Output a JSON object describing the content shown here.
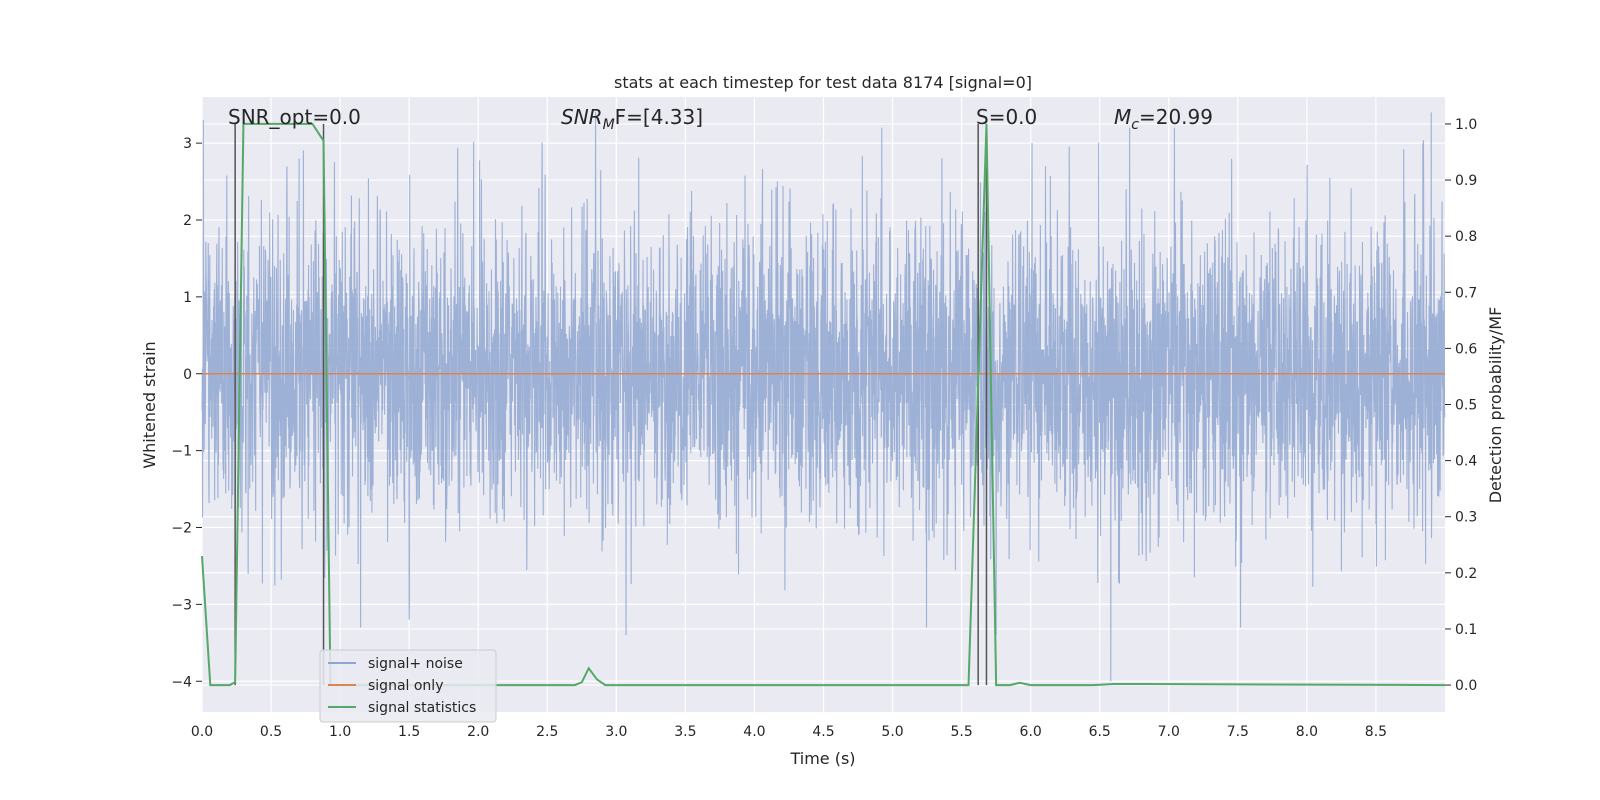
{
  "chart_data": {
    "type": "line",
    "title": "stats at each timestep for test data 8174 [signal=0]",
    "xlabel": "Time (s)",
    "ylabel": "Whitened strain",
    "y2label": "Detection probability/MF",
    "xlim": [
      0.0,
      9.0
    ],
    "ylim": [
      -4.4,
      3.6
    ],
    "y2lim": [
      -0.048,
      1.048
    ],
    "xticks": [
      "0.0",
      "0.5",
      "1.0",
      "1.5",
      "2.0",
      "2.5",
      "3.0",
      "3.5",
      "4.0",
      "4.5",
      "5.0",
      "5.5",
      "6.0",
      "6.5",
      "7.0",
      "7.5",
      "8.0",
      "8.5"
    ],
    "yticks": [
      "3",
      "2",
      "1",
      "0",
      "−1",
      "−2",
      "−3",
      "−4"
    ],
    "y2ticks": [
      "1.0",
      "0.9",
      "0.8",
      "0.7",
      "0.6",
      "0.5",
      "0.4",
      "0.3",
      "0.2",
      "0.1",
      "0.0"
    ],
    "grid": true,
    "legend_position": "lower-left",
    "annotations": {
      "snr_opt": "SNR_opt=0.0",
      "snr_mf_main": "SNR",
      "snr_mf_sub": "M",
      "snr_mf_rest": "F=[4.33]",
      "s": "S=0.0",
      "mc_main": "M",
      "mc_sub": "c",
      "mc_rest": "=20.99"
    },
    "vlines_x": [
      0.24,
      0.88,
      5.62,
      5.68
    ],
    "series": [
      {
        "name": "signal+ noise",
        "color": "#8fa6d0",
        "axis": "left",
        "kind": "noise",
        "sample_rate_hz": 512,
        "approx_std": 0.98,
        "peak_values": [
          {
            "x": 0.01,
            "y": 3.3
          },
          {
            "x": 2.85,
            "y": 3.4
          },
          {
            "x": 8.9,
            "y": 3.4
          },
          {
            "x": 8.84,
            "y": 3.0
          },
          {
            "x": 6.58,
            "y": -4.0
          },
          {
            "x": 1.5,
            "y": -3.2
          },
          {
            "x": 3.07,
            "y": -3.4
          },
          {
            "x": 5.75,
            "y": -3.4
          },
          {
            "x": 7.52,
            "y": -3.3
          }
        ]
      },
      {
        "name": "signal only",
        "color": "#dd8452",
        "axis": "left",
        "x": [
          0.0,
          9.0
        ],
        "y": [
          0.0,
          0.0
        ]
      },
      {
        "name": "signal statistics",
        "color": "#55a868",
        "axis": "right",
        "x": [
          0.0,
          0.06,
          0.2,
          0.24,
          0.3,
          0.8,
          0.88,
          0.93,
          2.7,
          2.75,
          2.8,
          2.86,
          2.92,
          3.0,
          5.55,
          5.68,
          5.75,
          5.85,
          5.92,
          6.0,
          6.45,
          6.6,
          9.0
        ],
        "y": [
          0.23,
          0.0,
          0.0,
          0.005,
          1.0,
          1.0,
          0.97,
          0.0,
          0.0,
          0.005,
          0.03,
          0.01,
          0.0,
          0.0,
          0.0,
          1.0,
          0.0,
          0.0,
          0.004,
          0.0,
          0.0,
          0.002,
          0.0
        ]
      }
    ]
  }
}
